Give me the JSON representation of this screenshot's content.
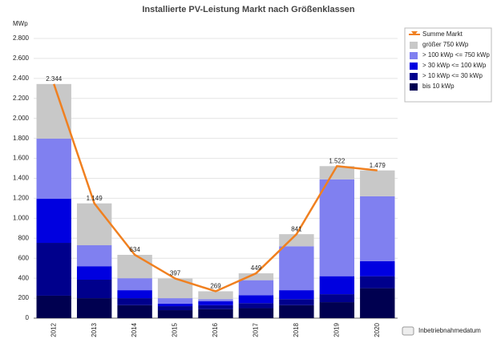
{
  "chart_data": {
    "type": "bar",
    "stacked": true,
    "title": "Installierte PV-Leistung Markt nach Größenklassen",
    "y_label": "MWp",
    "x_label": "Inbetriebnahmedatum",
    "categories": [
      "2012",
      "2013",
      "2014",
      "2015",
      "2016",
      "2017",
      "2018",
      "2019",
      "2020"
    ],
    "series": [
      {
        "name": "Summe Markt",
        "type": "line",
        "color": "#f08020",
        "values": [
          2344,
          1149,
          634,
          397,
          269,
          449,
          841,
          1522,
          1479
        ],
        "value_labels": [
          "2.344",
          "1.149",
          "634",
          "397",
          "269",
          "449",
          "841",
          "1.522",
          "1.479"
        ]
      },
      {
        "name": "größer 750 kWp",
        "color": "#c8c8c8",
        "values": [
          547,
          419,
          234,
          197,
          79,
          69,
          121,
          132,
          259
        ]
      },
      {
        "name": "> 100 kWp <= 750 kWp",
        "color": "#8080f0",
        "values": [
          602,
          210,
          120,
          55,
          20,
          150,
          440,
          970,
          650
        ]
      },
      {
        "name": "> 30 kWp <= 100 kWp",
        "color": "#0000e0",
        "values": [
          441,
          135,
          80,
          25,
          40,
          80,
          90,
          180,
          150
        ]
      },
      {
        "name": "> 10 kWp <= 30 kWp",
        "color": "#00008c",
        "values": [
          529,
          185,
          70,
          40,
          40,
          50,
          60,
          80,
          120
        ]
      },
      {
        "name": "bis 10 kWp",
        "color": "#000050",
        "values": [
          225,
          200,
          130,
          80,
          90,
          100,
          130,
          160,
          300
        ]
      }
    ],
    "ylim": [
      0,
      2800
    ],
    "yticks": [
      0,
      200,
      400,
      600,
      800,
      {
        "value": 1000,
        "label": "1.000"
      },
      {
        "value": 1200,
        "label": "1.200"
      },
      {
        "value": 1400,
        "label": "1.400"
      },
      {
        "value": 1600,
        "label": "1.600"
      },
      {
        "value": 1800,
        "label": "1.800"
      },
      {
        "value": 2000,
        "label": "2.000"
      },
      {
        "value": 2200,
        "label": "2.200"
      },
      {
        "value": 2400,
        "label": "2.400"
      },
      {
        "value": 2600,
        "label": "2.600"
      },
      {
        "value": 2800,
        "label": "2.800"
      }
    ],
    "grid": true,
    "legend": "top-right"
  }
}
